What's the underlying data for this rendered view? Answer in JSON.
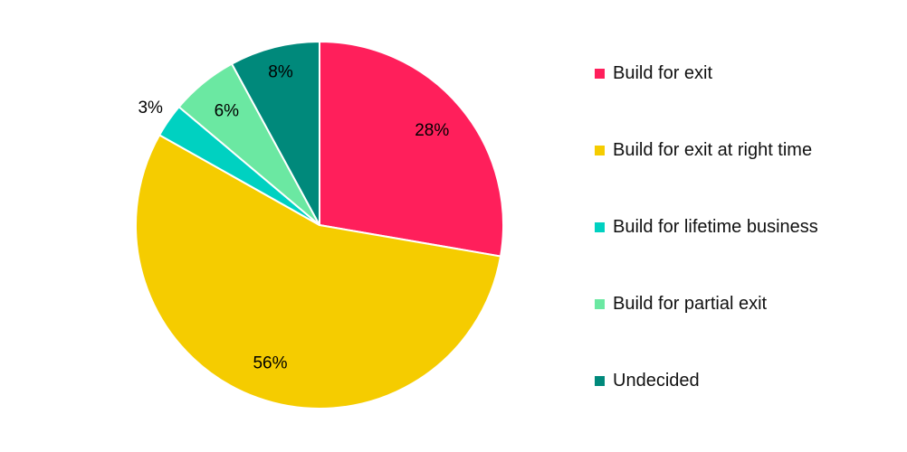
{
  "chart_data": {
    "type": "pie",
    "start_angle_deg": 0,
    "direction": "clockwise",
    "series": [
      {
        "name": "Build for exit",
        "value": 28,
        "label": "28%",
        "color": "#FF1F5B"
      },
      {
        "name": "Build for exit at right time",
        "value": 56,
        "label": "56%",
        "color": "#F5CC00"
      },
      {
        "name": "Build for lifetime business",
        "value": 3,
        "label": "3%",
        "color": "#00D1C1"
      },
      {
        "name": "Build for partial exit",
        "value": 6,
        "label": "6%",
        "color": "#6BE8A2"
      },
      {
        "name": "Undecided",
        "value": 8,
        "label": "8%",
        "color": "#00897B"
      }
    ],
    "legend": {
      "placement": "right"
    }
  }
}
